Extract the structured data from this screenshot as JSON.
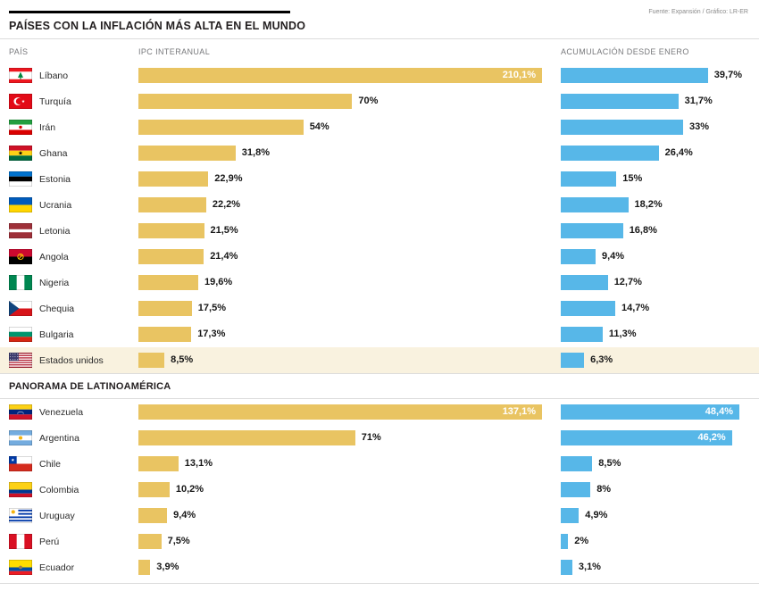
{
  "header": {
    "title": "PAÍSES CON LA INFLACIÓN MÁS ALTA EN EL MUNDO",
    "source": "Fuente: Expansión / Gráfico: LR-ER"
  },
  "columns": {
    "country": "PAÍS",
    "ipc": "IPC INTERANUAL",
    "accum": "ACUMULACIÓN DESDE ENERO"
  },
  "colors": {
    "bar_ipc": "#e9c462",
    "bar_accum": "#57b7e8",
    "highlight_row": "#f9f2df"
  },
  "chart_data": {
    "type": "bar",
    "title": "PAÍSES CON LA INFLACIÓN MÁS ALTA EN EL MUNDO",
    "unit": "%",
    "series": [
      {
        "name": "IPC INTERANUAL",
        "color": "#e9c462"
      },
      {
        "name": "ACUMULACIÓN DESDE ENERO",
        "color": "#57b7e8"
      }
    ],
    "sections": [
      {
        "title": "",
        "rows": [
          {
            "country": "Líbano",
            "flag": "lebanon",
            "ipc": 210.1,
            "ipc_label": "210,1%",
            "ipc_label_inside": true,
            "accum": 39.7,
            "accum_label": "39,7%",
            "accum_label_inside": false,
            "highlight": false
          },
          {
            "country": "Turquía",
            "flag": "turkey",
            "ipc": 70,
            "ipc_label": "70%",
            "ipc_label_inside": false,
            "accum": 31.7,
            "accum_label": "31,7%",
            "accum_label_inside": false,
            "highlight": false
          },
          {
            "country": "Irán",
            "flag": "iran",
            "ipc": 54,
            "ipc_label": "54%",
            "ipc_label_inside": false,
            "accum": 33,
            "accum_label": "33%",
            "accum_label_inside": false,
            "highlight": false
          },
          {
            "country": "Ghana",
            "flag": "ghana",
            "ipc": 31.8,
            "ipc_label": "31,8%",
            "ipc_label_inside": false,
            "accum": 26.4,
            "accum_label": "26,4%",
            "accum_label_inside": false,
            "highlight": false
          },
          {
            "country": "Estonia",
            "flag": "estonia",
            "ipc": 22.9,
            "ipc_label": "22,9%",
            "ipc_label_inside": false,
            "accum": 15,
            "accum_label": "15%",
            "accum_label_inside": false,
            "highlight": false
          },
          {
            "country": "Ucrania",
            "flag": "ukraine",
            "ipc": 22.2,
            "ipc_label": "22,2%",
            "ipc_label_inside": false,
            "accum": 18.2,
            "accum_label": "18,2%",
            "accum_label_inside": false,
            "highlight": false
          },
          {
            "country": "Letonia",
            "flag": "latvia",
            "ipc": 21.5,
            "ipc_label": "21,5%",
            "ipc_label_inside": false,
            "accum": 16.8,
            "accum_label": "16,8%",
            "accum_label_inside": false,
            "highlight": false
          },
          {
            "country": "Angola",
            "flag": "angola",
            "ipc": 21.4,
            "ipc_label": "21,4%",
            "ipc_label_inside": false,
            "accum": 9.4,
            "accum_label": "9,4%",
            "accum_label_inside": false,
            "highlight": false
          },
          {
            "country": "Nigeria",
            "flag": "nigeria",
            "ipc": 19.6,
            "ipc_label": "19,6%",
            "ipc_label_inside": false,
            "accum": 12.7,
            "accum_label": "12,7%",
            "accum_label_inside": false,
            "highlight": false
          },
          {
            "country": "Chequia",
            "flag": "czechia",
            "ipc": 17.5,
            "ipc_label": "17,5%",
            "ipc_label_inside": false,
            "accum": 14.7,
            "accum_label": "14,7%",
            "accum_label_inside": false,
            "highlight": false
          },
          {
            "country": "Bulgaria",
            "flag": "bulgaria",
            "ipc": 17.3,
            "ipc_label": "17,3%",
            "ipc_label_inside": false,
            "accum": 11.3,
            "accum_label": "11,3%",
            "accum_label_inside": false,
            "highlight": false
          },
          {
            "country": "Estados unidos",
            "flag": "usa",
            "ipc": 8.5,
            "ipc_label": "8,5%",
            "ipc_label_inside": false,
            "accum": 6.3,
            "accum_label": "6,3%",
            "accum_label_inside": false,
            "highlight": true
          }
        ]
      },
      {
        "title": "PANORAMA DE LATINOAMÉRICA",
        "rows": [
          {
            "country": "Venezuela",
            "flag": "venezuela",
            "ipc": 137.1,
            "ipc_label": "137,1%",
            "ipc_label_inside": true,
            "accum": 48.4,
            "accum_label": "48,4%",
            "accum_label_inside": true,
            "highlight": false
          },
          {
            "country": "Argentina",
            "flag": "argentina",
            "ipc": 71,
            "ipc_label": "71%",
            "ipc_label_inside": false,
            "accum": 46.2,
            "accum_label": "46,2%",
            "accum_label_inside": true,
            "highlight": false
          },
          {
            "country": "Chile",
            "flag": "chile",
            "ipc": 13.1,
            "ipc_label": "13,1%",
            "ipc_label_inside": false,
            "accum": 8.5,
            "accum_label": "8,5%",
            "accum_label_inside": false,
            "highlight": false
          },
          {
            "country": "Colombia",
            "flag": "colombia",
            "ipc": 10.2,
            "ipc_label": "10,2%",
            "ipc_label_inside": false,
            "accum": 8,
            "accum_label": "8%",
            "accum_label_inside": false,
            "highlight": false
          },
          {
            "country": "Uruguay",
            "flag": "uruguay",
            "ipc": 9.4,
            "ipc_label": "9,4%",
            "ipc_label_inside": false,
            "accum": 4.9,
            "accum_label": "4,9%",
            "accum_label_inside": false,
            "highlight": false
          },
          {
            "country": "Perú",
            "flag": "peru",
            "ipc": 7.5,
            "ipc_label": "7,5%",
            "ipc_label_inside": false,
            "accum": 2,
            "accum_label": "2%",
            "accum_label_inside": false,
            "highlight": false
          },
          {
            "country": "Ecuador",
            "flag": "ecuador",
            "ipc": 3.9,
            "ipc_label": "3,9%",
            "ipc_label_inside": false,
            "accum": 3.1,
            "accum_label": "3,1%",
            "accum_label_inside": false,
            "highlight": false
          }
        ]
      }
    ]
  }
}
